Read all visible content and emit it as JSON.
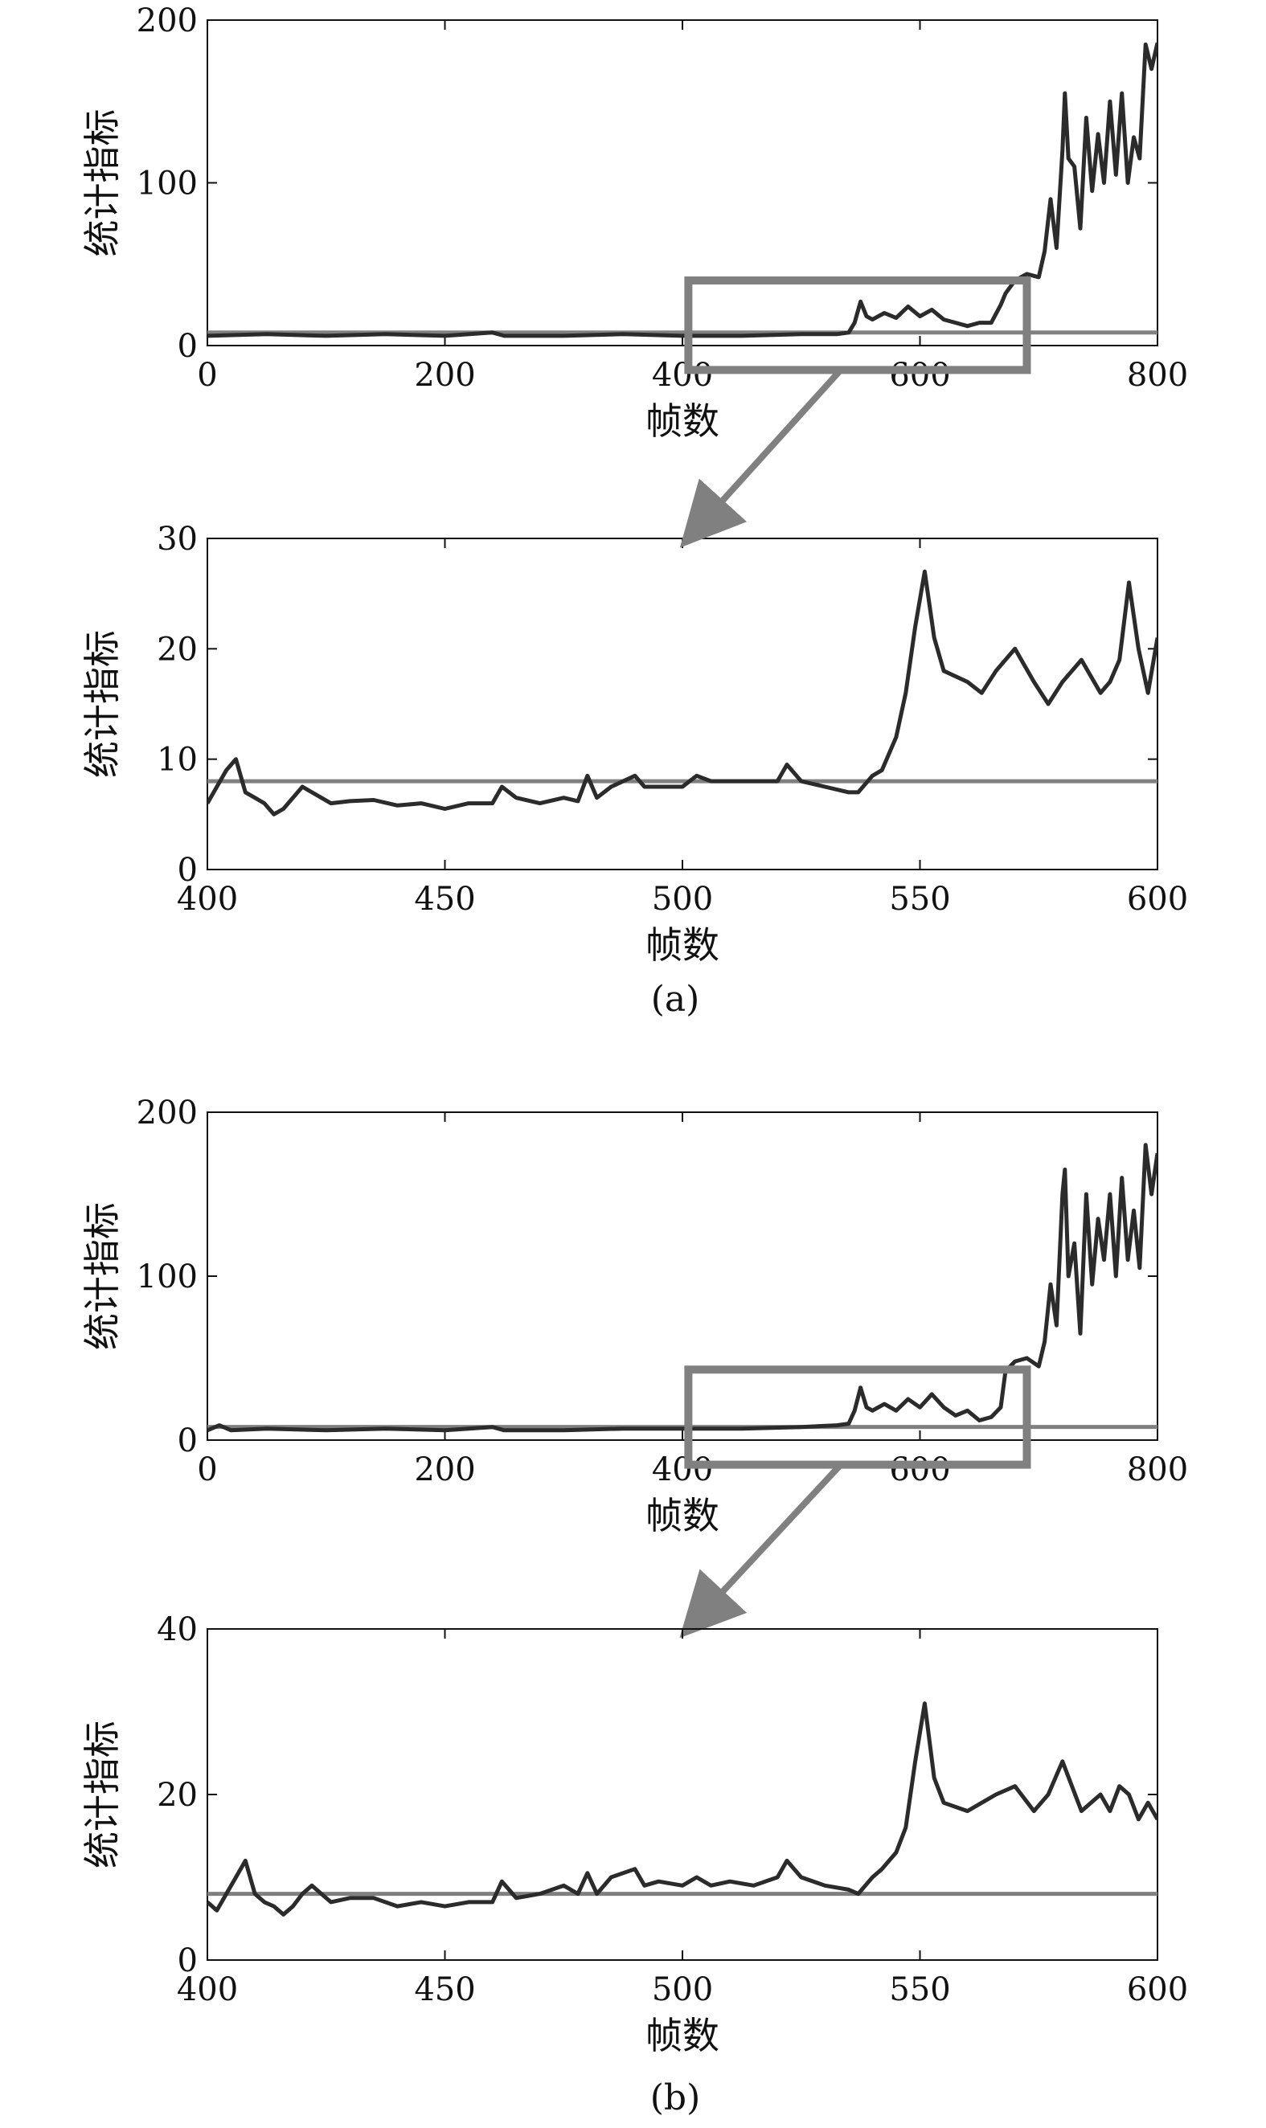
{
  "figure": {
    "caption_a": "(a)",
    "caption_b": "(b)",
    "series_color": "#2b2b2b",
    "threshold_color": "#808080",
    "box_color": "#808080"
  },
  "chart_data": [
    {
      "type": "line",
      "panel": "a-overview",
      "xlabel": "帧数",
      "ylabel": "统计指标",
      "xlim": [
        0,
        800
      ],
      "ylim": [
        0,
        200
      ],
      "xticks": [
        0,
        200,
        400,
        600,
        800
      ],
      "yticks": [
        0,
        100,
        200
      ],
      "threshold": 8,
      "zoom_box": {
        "x": [
          405,
          690
        ],
        "y": [
          -15,
          40
        ]
      },
      "x": [
        0,
        50,
        100,
        150,
        200,
        240,
        250,
        300,
        350,
        400,
        450,
        500,
        530,
        540,
        545,
        550,
        555,
        560,
        570,
        580,
        590,
        600,
        610,
        620,
        630,
        640,
        650,
        660,
        668,
        672,
        680,
        690,
        700,
        705,
        710,
        715,
        720,
        722,
        725,
        730,
        735,
        740,
        745,
        750,
        755,
        760,
        765,
        770,
        775,
        780,
        785,
        790,
        795,
        800
      ],
      "values": [
        6,
        7,
        6,
        7,
        6,
        8,
        6,
        6,
        7,
        6,
        6,
        7,
        7,
        8,
        14,
        27,
        18,
        16,
        20,
        17,
        24,
        18,
        22,
        16,
        14,
        12,
        14,
        14,
        25,
        32,
        40,
        44,
        42,
        58,
        90,
        60,
        120,
        155,
        115,
        110,
        72,
        140,
        95,
        130,
        100,
        150,
        105,
        155,
        100,
        128,
        115,
        185,
        170,
        186
      ]
    },
    {
      "type": "line",
      "panel": "a-zoom",
      "xlabel": "帧数",
      "ylabel": "统计指标",
      "xlim": [
        400,
        600
      ],
      "ylim": [
        0,
        30
      ],
      "xticks": [
        400,
        450,
        500,
        550,
        600
      ],
      "yticks": [
        0,
        10,
        20,
        30
      ],
      "threshold": 8,
      "x": [
        400,
        402,
        404,
        406,
        408,
        410,
        412,
        414,
        416,
        418,
        420,
        422,
        424,
        426,
        430,
        435,
        440,
        445,
        450,
        455,
        460,
        462,
        465,
        470,
        475,
        478,
        480,
        482,
        485,
        490,
        492,
        495,
        500,
        503,
        506,
        510,
        515,
        520,
        522,
        525,
        530,
        535,
        537,
        540,
        542,
        545,
        547,
        549,
        551,
        553,
        555,
        560,
        563,
        566,
        570,
        574,
        577,
        580,
        584,
        588,
        590,
        592,
        594,
        596,
        598,
        600
      ],
      "values": [
        6,
        7.5,
        9,
        10,
        7,
        6.5,
        6,
        5,
        5.5,
        6.5,
        7.5,
        7,
        6.5,
        6,
        6.2,
        6.3,
        5.8,
        6,
        5.5,
        6,
        6,
        7.5,
        6.5,
        6,
        6.5,
        6.2,
        8.5,
        6.5,
        7.5,
        8.5,
        7.5,
        7.5,
        7.5,
        8.5,
        8,
        8,
        8,
        8,
        9.5,
        8,
        7.5,
        7,
        7,
        8.5,
        9,
        12,
        16,
        22,
        27,
        21,
        18,
        17,
        16,
        18,
        20,
        17,
        15,
        17,
        19,
        16,
        17,
        19,
        26,
        20,
        16,
        21
      ]
    },
    {
      "type": "line",
      "panel": "b-overview",
      "xlabel": "帧数",
      "ylabel": "统计指标",
      "xlim": [
        0,
        800
      ],
      "ylim": [
        0,
        200
      ],
      "xticks": [
        0,
        200,
        400,
        600,
        800
      ],
      "yticks": [
        0,
        100,
        200
      ],
      "threshold": 8,
      "zoom_box": {
        "x": [
          405,
          690
        ],
        "y": [
          -15,
          43
        ]
      },
      "x": [
        0,
        10,
        20,
        50,
        100,
        150,
        200,
        240,
        250,
        300,
        350,
        400,
        450,
        500,
        530,
        540,
        545,
        550,
        555,
        560,
        570,
        580,
        590,
        600,
        610,
        620,
        630,
        640,
        650,
        660,
        668,
        672,
        680,
        690,
        700,
        705,
        710,
        715,
        720,
        722,
        725,
        730,
        735,
        740,
        745,
        750,
        755,
        760,
        765,
        770,
        775,
        780,
        785,
        790,
        795,
        800
      ],
      "values": [
        6,
        9,
        6,
        7,
        6,
        7,
        6,
        8,
        6,
        6,
        7,
        7,
        7,
        8,
        9,
        10,
        18,
        32,
        20,
        18,
        22,
        18,
        25,
        20,
        28,
        20,
        15,
        18,
        12,
        14,
        20,
        42,
        48,
        50,
        45,
        60,
        95,
        70,
        150,
        165,
        100,
        120,
        65,
        150,
        95,
        135,
        110,
        150,
        100,
        160,
        110,
        140,
        105,
        180,
        150,
        175
      ]
    },
    {
      "type": "line",
      "panel": "b-zoom",
      "xlabel": "帧数",
      "ylabel": "统计指标",
      "xlim": [
        400,
        600
      ],
      "ylim": [
        0,
        40
      ],
      "xticks": [
        400,
        450,
        500,
        550,
        600
      ],
      "yticks": [
        0,
        20,
        40
      ],
      "threshold": 8,
      "x": [
        400,
        402,
        404,
        406,
        408,
        410,
        412,
        414,
        416,
        418,
        420,
        422,
        424,
        426,
        430,
        435,
        440,
        445,
        450,
        455,
        460,
        462,
        465,
        470,
        475,
        478,
        480,
        482,
        485,
        490,
        492,
        495,
        500,
        503,
        506,
        510,
        515,
        520,
        522,
        525,
        530,
        535,
        537,
        540,
        542,
        545,
        547,
        549,
        551,
        553,
        555,
        560,
        563,
        566,
        570,
        574,
        577,
        580,
        584,
        588,
        590,
        592,
        594,
        596,
        598,
        600
      ],
      "values": [
        7,
        6,
        8,
        10,
        12,
        8,
        7,
        6.5,
        5.5,
        6.5,
        8,
        9,
        8,
        7,
        7.5,
        7.5,
        6.5,
        7,
        6.5,
        7,
        7,
        9.5,
        7.5,
        8,
        9,
        8,
        10.5,
        8,
        10,
        11,
        9,
        9.5,
        9,
        10,
        9,
        9.5,
        9,
        10,
        12,
        10,
        9,
        8.5,
        8,
        10,
        11,
        13,
        16,
        24,
        31,
        22,
        19,
        18,
        19,
        20,
        21,
        18,
        20,
        24,
        18,
        20,
        18,
        21,
        20,
        17,
        19,
        17
      ]
    }
  ]
}
